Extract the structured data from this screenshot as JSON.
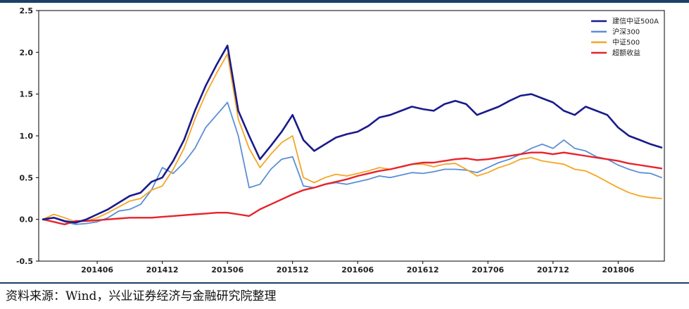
{
  "chart_data": {
    "type": "line",
    "xlabel": "",
    "ylabel": "",
    "x_tick_labels": [
      "201406",
      "201412",
      "201506",
      "201512",
      "201606",
      "201612",
      "201706",
      "201712",
      "201806"
    ],
    "x_range": [
      "201401",
      "201810"
    ],
    "y_ticks": [
      -0.5,
      0.0,
      0.5,
      1.0,
      1.5,
      2.0,
      2.5
    ],
    "y_tick_labels": [
      "-0.5",
      "0.0",
      "0.5",
      "1.0",
      "1.5",
      "2.0",
      "2.5"
    ],
    "ylim": [
      -0.5,
      2.5
    ],
    "grid": false,
    "legend_position": "top-right",
    "series": [
      {
        "name": "建信中证500A",
        "color": "#1a1a8c",
        "width": 2.6,
        "points": [
          [
            "201401",
            0.0
          ],
          [
            "201402",
            0.02
          ],
          [
            "201403",
            -0.02
          ],
          [
            "201404",
            -0.04
          ],
          [
            "201405",
            0.0
          ],
          [
            "201406",
            0.06
          ],
          [
            "201407",
            0.12
          ],
          [
            "201408",
            0.2
          ],
          [
            "201409",
            0.28
          ],
          [
            "201410",
            0.32
          ],
          [
            "201411",
            0.45
          ],
          [
            "201412",
            0.5
          ],
          [
            "201501",
            0.7
          ],
          [
            "201502",
            0.95
          ],
          [
            "201503",
            1.3
          ],
          [
            "201504",
            1.6
          ],
          [
            "201505",
            1.85
          ],
          [
            "201506",
            2.08
          ],
          [
            "201507",
            1.3
          ],
          [
            "201508",
            1.0
          ],
          [
            "201509",
            0.72
          ],
          [
            "201510",
            0.88
          ],
          [
            "201511",
            1.05
          ],
          [
            "201512",
            1.25
          ],
          [
            "201601",
            0.95
          ],
          [
            "201602",
            0.82
          ],
          [
            "201603",
            0.9
          ],
          [
            "201604",
            0.98
          ],
          [
            "201605",
            1.02
          ],
          [
            "201606",
            1.05
          ],
          [
            "201607",
            1.12
          ],
          [
            "201608",
            1.22
          ],
          [
            "201609",
            1.25
          ],
          [
            "201610",
            1.3
          ],
          [
            "201611",
            1.35
          ],
          [
            "201612",
            1.32
          ],
          [
            "201701",
            1.3
          ],
          [
            "201702",
            1.38
          ],
          [
            "201703",
            1.42
          ],
          [
            "201704",
            1.38
          ],
          [
            "201705",
            1.25
          ],
          [
            "201706",
            1.3
          ],
          [
            "201707",
            1.35
          ],
          [
            "201708",
            1.42
          ],
          [
            "201709",
            1.48
          ],
          [
            "201710",
            1.5
          ],
          [
            "201711",
            1.45
          ],
          [
            "201712",
            1.4
          ],
          [
            "201801",
            1.3
          ],
          [
            "201802",
            1.25
          ],
          [
            "201803",
            1.35
          ],
          [
            "201804",
            1.3
          ],
          [
            "201805",
            1.25
          ],
          [
            "201806",
            1.1
          ],
          [
            "201807",
            1.0
          ],
          [
            "201808",
            0.95
          ],
          [
            "201809",
            0.9
          ],
          [
            "201810",
            0.86
          ]
        ]
      },
      {
        "name": "沪深300",
        "color": "#5b8fd6",
        "width": 1.8,
        "points": [
          [
            "201401",
            0.0
          ],
          [
            "201402",
            0.02
          ],
          [
            "201403",
            -0.03
          ],
          [
            "201404",
            -0.06
          ],
          [
            "201405",
            -0.05
          ],
          [
            "201406",
            -0.03
          ],
          [
            "201407",
            0.02
          ],
          [
            "201408",
            0.1
          ],
          [
            "201409",
            0.12
          ],
          [
            "201410",
            0.18
          ],
          [
            "201411",
            0.35
          ],
          [
            "201412",
            0.62
          ],
          [
            "201501",
            0.55
          ],
          [
            "201502",
            0.68
          ],
          [
            "201503",
            0.85
          ],
          [
            "201504",
            1.1
          ],
          [
            "201505",
            1.25
          ],
          [
            "201506",
            1.4
          ],
          [
            "201507",
            1.0
          ],
          [
            "201508",
            0.38
          ],
          [
            "201509",
            0.42
          ],
          [
            "201510",
            0.6
          ],
          [
            "201511",
            0.72
          ],
          [
            "201512",
            0.75
          ],
          [
            "201601",
            0.4
          ],
          [
            "201602",
            0.38
          ],
          [
            "201603",
            0.42
          ],
          [
            "201604",
            0.44
          ],
          [
            "201605",
            0.42
          ],
          [
            "201606",
            0.45
          ],
          [
            "201607",
            0.48
          ],
          [
            "201608",
            0.52
          ],
          [
            "201609",
            0.5
          ],
          [
            "201610",
            0.53
          ],
          [
            "201611",
            0.56
          ],
          [
            "201612",
            0.55
          ],
          [
            "201701",
            0.57
          ],
          [
            "201702",
            0.6
          ],
          [
            "201703",
            0.6
          ],
          [
            "201704",
            0.59
          ],
          [
            "201705",
            0.56
          ],
          [
            "201706",
            0.62
          ],
          [
            "201707",
            0.68
          ],
          [
            "201708",
            0.72
          ],
          [
            "201709",
            0.78
          ],
          [
            "201710",
            0.85
          ],
          [
            "201711",
            0.9
          ],
          [
            "201712",
            0.85
          ],
          [
            "201801",
            0.95
          ],
          [
            "201802",
            0.85
          ],
          [
            "201803",
            0.82
          ],
          [
            "201804",
            0.75
          ],
          [
            "201805",
            0.72
          ],
          [
            "201806",
            0.65
          ],
          [
            "201807",
            0.6
          ],
          [
            "201808",
            0.56
          ],
          [
            "201809",
            0.55
          ],
          [
            "201810",
            0.5
          ]
        ]
      },
      {
        "name": "中证500",
        "color": "#f5a623",
        "width": 1.8,
        "points": [
          [
            "201401",
            0.0
          ],
          [
            "201402",
            0.06
          ],
          [
            "201403",
            0.02
          ],
          [
            "201404",
            -0.03
          ],
          [
            "201405",
            -0.02
          ],
          [
            "201406",
            0.02
          ],
          [
            "201407",
            0.08
          ],
          [
            "201408",
            0.15
          ],
          [
            "201409",
            0.22
          ],
          [
            "201410",
            0.25
          ],
          [
            "201411",
            0.35
          ],
          [
            "201412",
            0.4
          ],
          [
            "201501",
            0.6
          ],
          [
            "201502",
            0.85
          ],
          [
            "201503",
            1.2
          ],
          [
            "201504",
            1.5
          ],
          [
            "201505",
            1.75
          ],
          [
            "201506",
            1.98
          ],
          [
            "201507",
            1.2
          ],
          [
            "201508",
            0.85
          ],
          [
            "201509",
            0.62
          ],
          [
            "201510",
            0.78
          ],
          [
            "201511",
            0.92
          ],
          [
            "201512",
            1.0
          ],
          [
            "201601",
            0.5
          ],
          [
            "201602",
            0.44
          ],
          [
            "201603",
            0.5
          ],
          [
            "201604",
            0.54
          ],
          [
            "201605",
            0.52
          ],
          [
            "201606",
            0.55
          ],
          [
            "201607",
            0.58
          ],
          [
            "201608",
            0.62
          ],
          [
            "201609",
            0.6
          ],
          [
            "201610",
            0.63
          ],
          [
            "201611",
            0.66
          ],
          [
            "201612",
            0.66
          ],
          [
            "201701",
            0.63
          ],
          [
            "201702",
            0.66
          ],
          [
            "201703",
            0.67
          ],
          [
            "201704",
            0.6
          ],
          [
            "201705",
            0.52
          ],
          [
            "201706",
            0.56
          ],
          [
            "201707",
            0.62
          ],
          [
            "201708",
            0.66
          ],
          [
            "201709",
            0.72
          ],
          [
            "201710",
            0.74
          ],
          [
            "201711",
            0.7
          ],
          [
            "201712",
            0.68
          ],
          [
            "201801",
            0.66
          ],
          [
            "201802",
            0.6
          ],
          [
            "201803",
            0.58
          ],
          [
            "201804",
            0.52
          ],
          [
            "201805",
            0.45
          ],
          [
            "201806",
            0.38
          ],
          [
            "201807",
            0.32
          ],
          [
            "201808",
            0.28
          ],
          [
            "201809",
            0.26
          ],
          [
            "201810",
            0.25
          ]
        ]
      },
      {
        "name": "超额收益",
        "color": "#e8232b",
        "width": 2.4,
        "points": [
          [
            "201401",
            0.0
          ],
          [
            "201402",
            -0.03
          ],
          [
            "201403",
            -0.06
          ],
          [
            "201404",
            -0.02
          ],
          [
            "201405",
            -0.02
          ],
          [
            "201406",
            -0.01
          ],
          [
            "201407",
            0.0
          ],
          [
            "201408",
            0.01
          ],
          [
            "201409",
            0.02
          ],
          [
            "201410",
            0.02
          ],
          [
            "201411",
            0.02
          ],
          [
            "201412",
            0.03
          ],
          [
            "201501",
            0.04
          ],
          [
            "201502",
            0.05
          ],
          [
            "201503",
            0.06
          ],
          [
            "201504",
            0.07
          ],
          [
            "201505",
            0.08
          ],
          [
            "201506",
            0.08
          ],
          [
            "201507",
            0.06
          ],
          [
            "201508",
            0.04
          ],
          [
            "201509",
            0.12
          ],
          [
            "201510",
            0.18
          ],
          [
            "201511",
            0.24
          ],
          [
            "201512",
            0.3
          ],
          [
            "201601",
            0.35
          ],
          [
            "201602",
            0.38
          ],
          [
            "201603",
            0.42
          ],
          [
            "201604",
            0.45
          ],
          [
            "201605",
            0.48
          ],
          [
            "201606",
            0.52
          ],
          [
            "201607",
            0.55
          ],
          [
            "201608",
            0.58
          ],
          [
            "201609",
            0.6
          ],
          [
            "201610",
            0.63
          ],
          [
            "201611",
            0.66
          ],
          [
            "201612",
            0.68
          ],
          [
            "201701",
            0.68
          ],
          [
            "201702",
            0.7
          ],
          [
            "201703",
            0.72
          ],
          [
            "201704",
            0.73
          ],
          [
            "201705",
            0.71
          ],
          [
            "201706",
            0.72
          ],
          [
            "201707",
            0.74
          ],
          [
            "201708",
            0.76
          ],
          [
            "201709",
            0.78
          ],
          [
            "201710",
            0.8
          ],
          [
            "201711",
            0.8
          ],
          [
            "201712",
            0.78
          ],
          [
            "201801",
            0.8
          ],
          [
            "201802",
            0.78
          ],
          [
            "201803",
            0.76
          ],
          [
            "201804",
            0.74
          ],
          [
            "201805",
            0.72
          ],
          [
            "201806",
            0.7
          ],
          [
            "201807",
            0.67
          ],
          [
            "201808",
            0.65
          ],
          [
            "201809",
            0.63
          ],
          [
            "201810",
            0.61
          ]
        ]
      }
    ]
  },
  "source_note": "资料来源：Wind，兴业证券经济与金融研究院整理"
}
